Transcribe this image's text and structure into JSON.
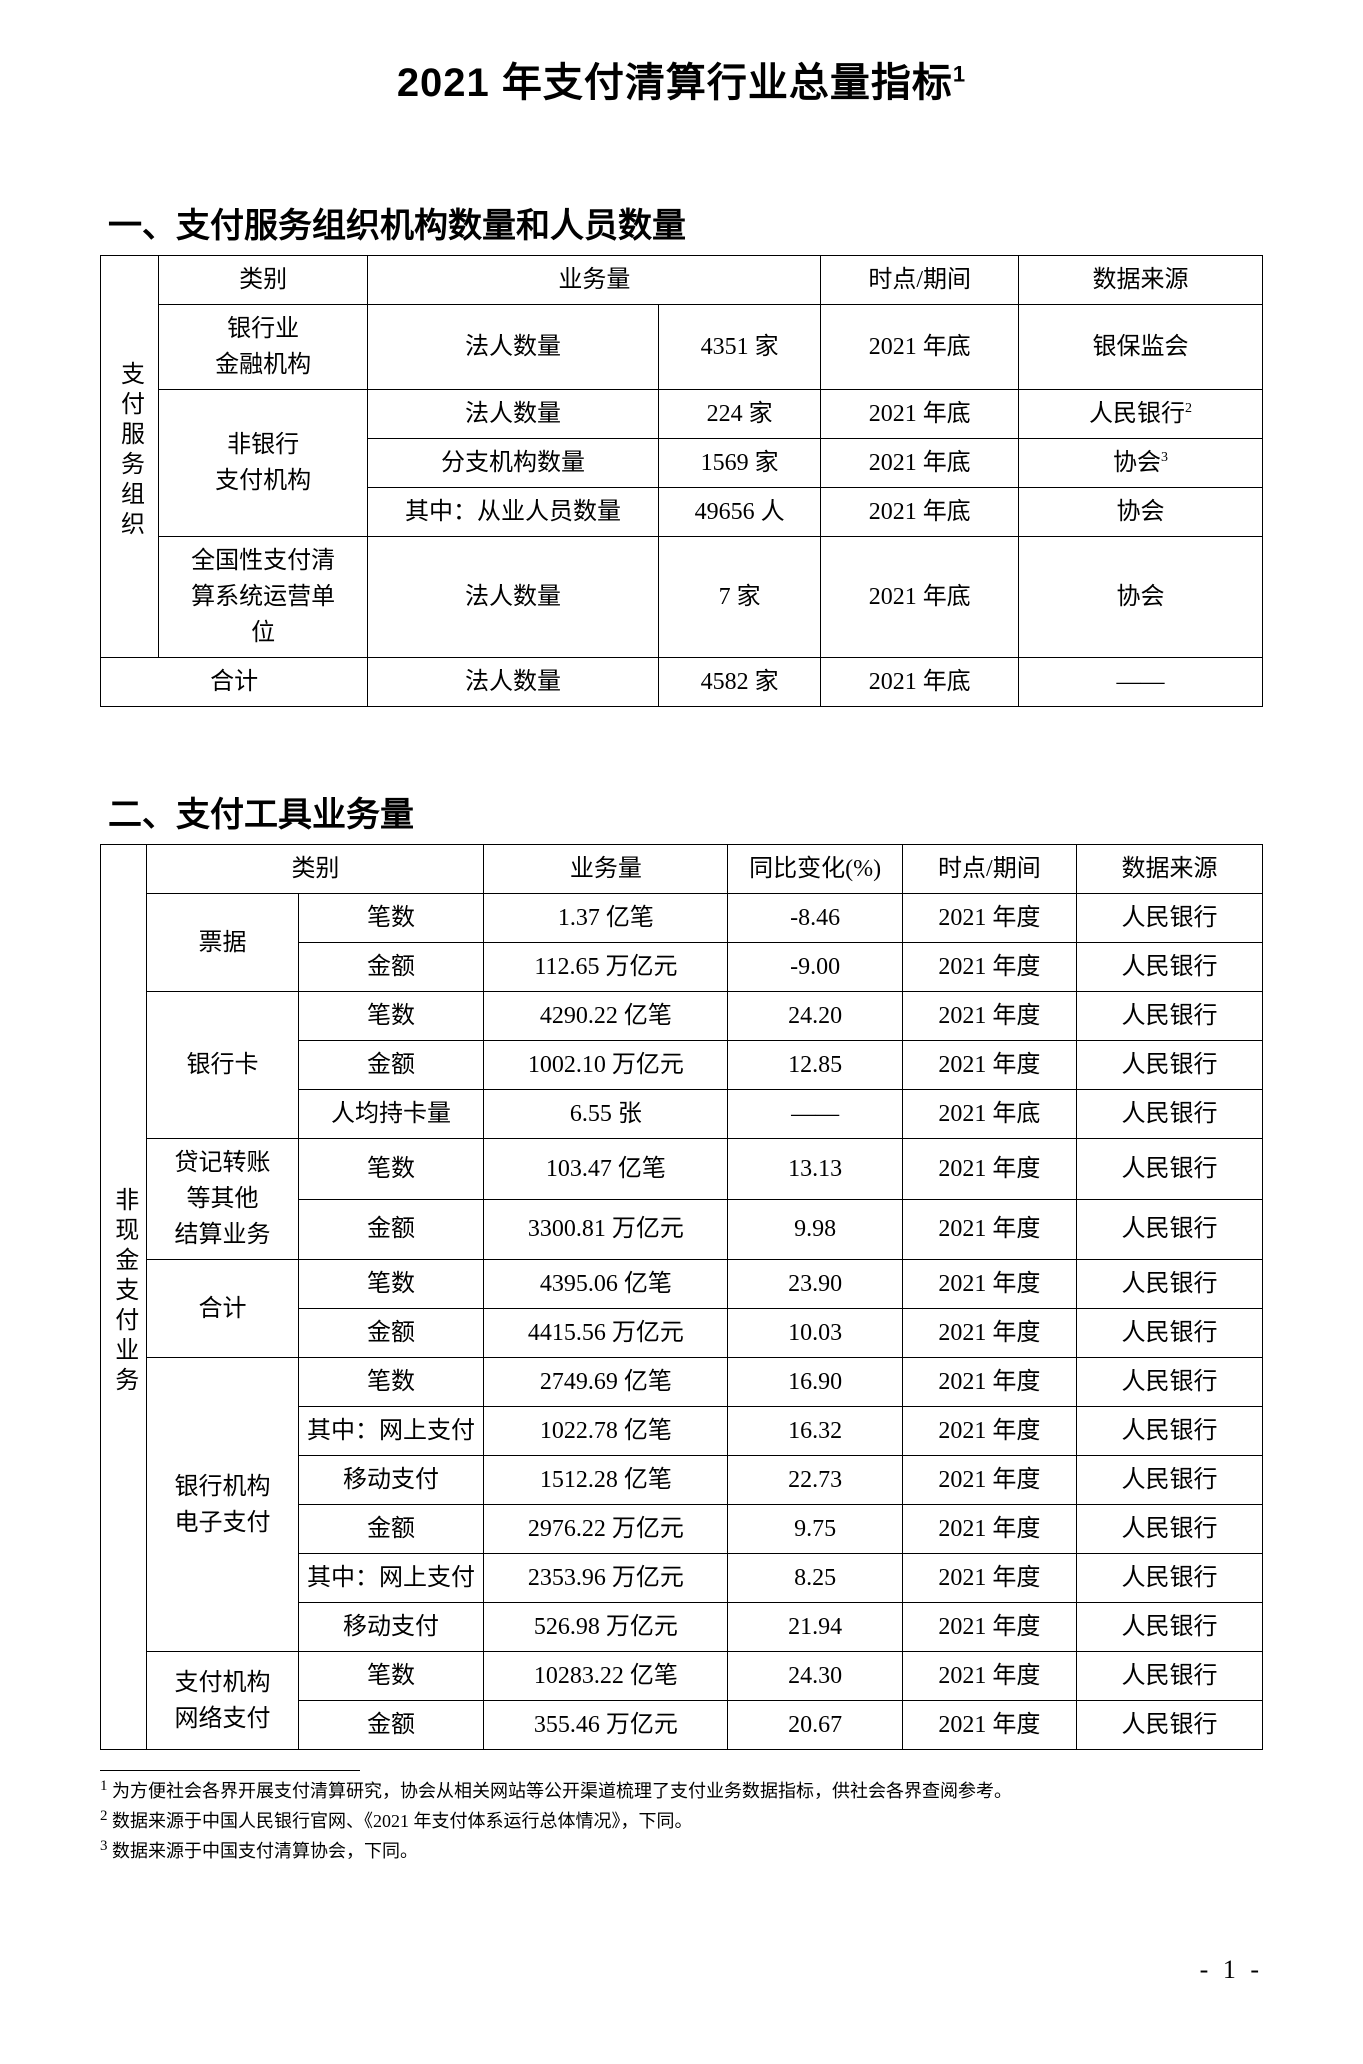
{
  "title": "2021 年支付清算行业总量指标",
  "title_sup": "1",
  "section1": {
    "head": "一、支付服务组织机构数量和人员数量",
    "vlabel": "支付服务组织",
    "headers": [
      "类别",
      "业务量",
      "时点/期间",
      "数据来源"
    ],
    "row1": {
      "cat": "银行业\n金融机构",
      "metric": "法人数量",
      "val": "4351 家",
      "period": "2021 年底",
      "src": "银保监会"
    },
    "row2": {
      "cat": "非银行\n支付机构",
      "m1": "法人数量",
      "v1": "224 家",
      "p1": "2021 年底",
      "s1": "人民银行",
      "s1sup": "2",
      "m2": "分支机构数量",
      "v2": "1569 家",
      "p2": "2021 年底",
      "s2": "协会",
      "s2sup": "3",
      "m3": "其中：从业人员数量",
      "v3": "49656 人",
      "p3": "2021 年底",
      "s3": "协会"
    },
    "row3": {
      "cat": "全国性支付清\n算系统运营单\n位",
      "metric": "法人数量",
      "val": "7 家",
      "period": "2021 年底",
      "src": "协会"
    },
    "total": {
      "cat": "合计",
      "metric": "法人数量",
      "val": "4582 家",
      "period": "2021 年底",
      "src": "——"
    }
  },
  "section2": {
    "head": "二、支付工具业务量",
    "vlabel": "非现金支付业务",
    "headers": [
      "类别",
      "业务量",
      "同比变化(%)",
      "时点/期间",
      "数据来源"
    ],
    "rows": [
      {
        "g": "票据",
        "m": "笔数",
        "v": "1.37 亿笔",
        "c": "-8.46",
        "p": "2021 年度",
        "s": "人民银行",
        "rowspan": 2
      },
      {
        "g": "",
        "m": "金额",
        "v": "112.65 万亿元",
        "c": "-9.00",
        "p": "2021 年度",
        "s": "人民银行"
      },
      {
        "g": "银行卡",
        "m": "笔数",
        "v": "4290.22 亿笔",
        "c": "24.20",
        "p": "2021 年度",
        "s": "人民银行",
        "rowspan": 3
      },
      {
        "g": "",
        "m": "金额",
        "v": "1002.10 万亿元",
        "c": "12.85",
        "p": "2021 年度",
        "s": "人民银行"
      },
      {
        "g": "",
        "m": "人均持卡量",
        "v": "6.55 张",
        "c": "——",
        "p": "2021 年底",
        "s": "人民银行"
      },
      {
        "g": "贷记转账\n等其他\n结算业务",
        "m": "笔数",
        "v": "103.47 亿笔",
        "c": "13.13",
        "p": "2021 年度",
        "s": "人民银行",
        "rowspan": 2
      },
      {
        "g": "",
        "m": "金额",
        "v": "3300.81 万亿元",
        "c": "9.98",
        "p": "2021 年度",
        "s": "人民银行"
      },
      {
        "g": "合计",
        "m": "笔数",
        "v": "4395.06 亿笔",
        "c": "23.90",
        "p": "2021 年度",
        "s": "人民银行",
        "rowspan": 2
      },
      {
        "g": "",
        "m": "金额",
        "v": "4415.56 万亿元",
        "c": "10.03",
        "p": "2021 年度",
        "s": "人民银行"
      },
      {
        "g": "银行机构\n电子支付",
        "m": "笔数",
        "v": "2749.69 亿笔",
        "c": "16.90",
        "p": "2021 年度",
        "s": "人民银行",
        "rowspan": 6
      },
      {
        "g": "",
        "m": "其中：网上支付",
        "v": "1022.78 亿笔",
        "c": "16.32",
        "p": "2021 年度",
        "s": "人民银行"
      },
      {
        "g": "",
        "m": "移动支付",
        "v": "1512.28 亿笔",
        "c": "22.73",
        "p": "2021 年度",
        "s": "人民银行"
      },
      {
        "g": "",
        "m": "金额",
        "v": "2976.22 万亿元",
        "c": "9.75",
        "p": "2021 年度",
        "s": "人民银行"
      },
      {
        "g": "",
        "m": "其中：网上支付",
        "v": "2353.96 万亿元",
        "c": "8.25",
        "p": "2021 年度",
        "s": "人民银行"
      },
      {
        "g": "",
        "m": "移动支付",
        "v": "526.98 万亿元",
        "c": "21.94",
        "p": "2021 年度",
        "s": "人民银行"
      },
      {
        "g": "支付机构\n网络支付",
        "m": "笔数",
        "v": "10283.22 亿笔",
        "c": "24.30",
        "p": "2021 年度",
        "s": "人民银行",
        "rowspan": 2
      },
      {
        "g": "",
        "m": "金额",
        "v": "355.46 万亿元",
        "c": "20.67",
        "p": "2021 年度",
        "s": "人民银行"
      }
    ]
  },
  "footnotes": {
    "f1": "为方便社会各界开展支付清算研究，协会从相关网站等公开渠道梳理了支付业务数据指标，供社会各界查阅参考。",
    "f2": "数据来源于中国人民银行官网、《2021 年支付体系运行总体情况》，下同。",
    "f3": "数据来源于中国支付清算协会，下同。"
  },
  "pagenum": "- 1 -",
  "cols1": {
    "c0": "5%",
    "c1": "18%",
    "c2": "25%",
    "c3": "14%",
    "c4": "17%",
    "c5": "21%"
  },
  "cols2": {
    "c0": "4%",
    "c1": "13%",
    "c2": "16%",
    "c3": "21%",
    "c4": "15%",
    "c5": "15%",
    "c6": "16%"
  }
}
